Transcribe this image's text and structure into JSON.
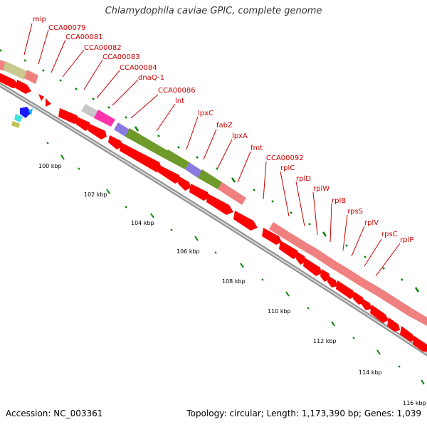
{
  "title": "Chlamydophila caviae GPIC, complete genome",
  "footer": {
    "accession": "Accession: NC_003361",
    "summary": "Topology: circular; Length: 1,173,390 bp; Genes: 1,039"
  },
  "colors": {
    "cds_arrow": "#ff0000",
    "gene_bar": "#f08080",
    "label": "#cc0000",
    "scale_tick": "#008800",
    "backbone": "#999999"
  },
  "scale_labels": [
    "100 kbp",
    "102 kbp",
    "104 kbp",
    "106 kbp",
    "108 kbp",
    "110 kbp",
    "112 kbp",
    "114 kbp",
    "116 kbp"
  ],
  "gene_labels": [
    "mip",
    "CCA00079",
    "CCA00081",
    "CCA00082",
    "CCA00083",
    "CCA00084",
    "dnaQ-1",
    "CCA00086",
    "lnt",
    "lpxC",
    "fabZ",
    "lpxA",
    "fmt",
    "CCA00092",
    "rplC",
    "rplD",
    "rplW",
    "rplB",
    "rpsS",
    "rplV",
    "rpsC",
    "rplP"
  ]
}
